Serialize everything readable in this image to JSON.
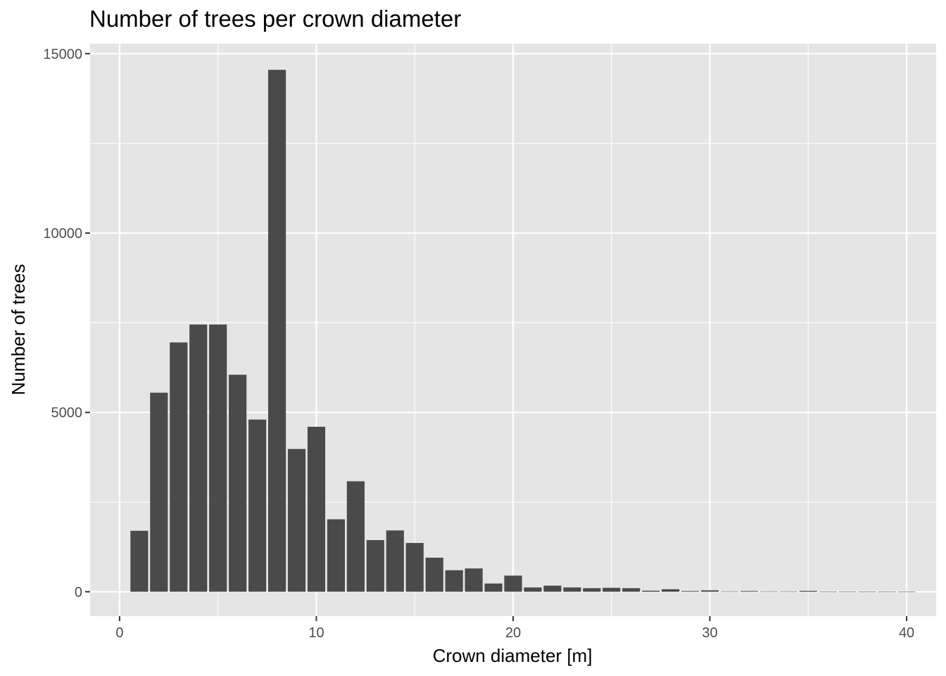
{
  "chart_data": {
    "type": "bar",
    "title": "Number of trees per crown diameter",
    "xlabel": "Crown diameter [m]",
    "ylabel": "Number of trees",
    "xlim": [
      -1.5,
      41.5
    ],
    "ylim": [
      -680,
      15280
    ],
    "xticks": [
      0,
      10,
      20,
      30,
      40
    ],
    "yticks": [
      0,
      5000,
      10000,
      15000
    ],
    "grid": true,
    "bar_width": 0.9,
    "x": [
      1,
      2,
      3,
      4,
      5,
      6,
      7,
      8,
      9,
      10,
      11,
      12,
      13,
      14,
      15,
      16,
      17,
      18,
      19,
      20,
      21,
      22,
      23,
      24,
      25,
      26,
      27,
      28,
      29,
      30,
      31,
      32,
      33,
      34,
      35,
      36,
      37,
      38,
      39,
      40
    ],
    "values": [
      1700,
      5550,
      6950,
      7450,
      7450,
      6050,
      4800,
      14550,
      3980,
      4600,
      2020,
      3080,
      1440,
      1710,
      1360,
      950,
      600,
      650,
      230,
      450,
      120,
      170,
      120,
      100,
      110,
      100,
      30,
      70,
      20,
      40,
      10,
      20,
      10,
      10,
      25,
      5,
      5,
      5,
      5,
      5
    ],
    "colors": {
      "bar": "#4a4a4a",
      "panel": "#e5e5e5",
      "grid": "#ffffff",
      "tick": "#333333"
    }
  }
}
